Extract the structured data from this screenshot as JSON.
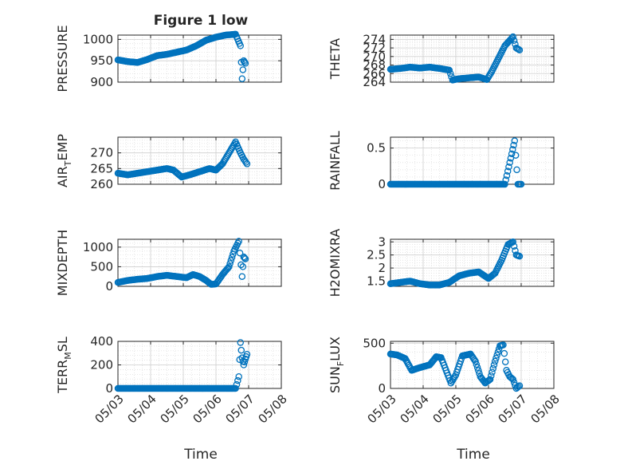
{
  "figure": {
    "title": "Figure 1 low",
    "xlabel": "Time",
    "marker_color": "#0072BD",
    "marker": "open-circle",
    "grid": "on (major + minor dotted)"
  },
  "chart_data": [
    {
      "type": "scatter",
      "ylabel": "PRESSURE",
      "ylim": [
        900,
        1010
      ],
      "yticks": [
        900,
        950,
        1000
      ],
      "xlim_days": [
        3,
        8
      ],
      "xticks": [
        "05/03",
        "05/04",
        "05/05",
        "05/06",
        "05/07",
        "05/08"
      ],
      "xticklabels_shown": false,
      "x_days": [
        3.0,
        3.3,
        3.6,
        3.9,
        4.2,
        4.5,
        4.8,
        5.1,
        5.4,
        5.7,
        6.0,
        6.3,
        6.6,
        6.75,
        6.8,
        6.85,
        6.9
      ],
      "y": [
        952,
        948,
        946,
        953,
        962,
        965,
        970,
        975,
        985,
        998,
        1005,
        1010,
        1012,
        985,
        908,
        950,
        944
      ]
    },
    {
      "type": "scatter",
      "ylabel": "THETA",
      "ylim": [
        264,
        275
      ],
      "yticks": [
        264,
        266,
        268,
        270,
        272,
        274
      ],
      "xlim_days": [
        3,
        8
      ],
      "xticks": [
        "05/03",
        "05/04",
        "05/05",
        "05/06",
        "05/07",
        "05/08"
      ],
      "xticklabels_shown": false,
      "x_days": [
        3.0,
        3.3,
        3.6,
        3.9,
        4.2,
        4.5,
        4.8,
        4.9,
        5.1,
        5.4,
        5.7,
        5.95,
        6.1,
        6.3,
        6.5,
        6.75,
        6.85,
        6.95
      ],
      "y": [
        267,
        267.2,
        267.5,
        267.3,
        267.5,
        267.2,
        266.8,
        264.5,
        264.8,
        265,
        265.2,
        264.6,
        266.5,
        269.5,
        272.5,
        274.6,
        272,
        271.5
      ]
    },
    {
      "type": "scatter",
      "ylabel": "AIR_TEMP",
      "ylim": [
        260,
        275
      ],
      "yticks": [
        260,
        265,
        270
      ],
      "xlim_days": [
        3,
        8
      ],
      "xticks": [
        "05/03",
        "05/04",
        "05/05",
        "05/06",
        "05/07",
        "05/08"
      ],
      "xticklabels_shown": false,
      "x_days": [
        3.0,
        3.3,
        3.6,
        3.9,
        4.2,
        4.5,
        4.7,
        4.95,
        5.2,
        5.5,
        5.8,
        6.0,
        6.2,
        6.4,
        6.6,
        6.75,
        6.85,
        6.95
      ],
      "y": [
        263.5,
        263,
        263.5,
        264,
        264.5,
        265,
        264.5,
        262.3,
        263,
        264,
        265,
        264.5,
        266.5,
        270,
        273.5,
        270,
        268,
        266.5
      ]
    },
    {
      "type": "scatter",
      "ylabel": "RAINFALL",
      "ylim": [
        0,
        0.65
      ],
      "yticks": [
        0,
        0.5
      ],
      "xlim_days": [
        3,
        8
      ],
      "xticks": [
        "05/03",
        "05/04",
        "05/05",
        "05/06",
        "05/07",
        "05/08"
      ],
      "xticklabels_shown": false,
      "x_days": [
        3.0,
        3.5,
        4.0,
        4.5,
        5.0,
        5.5,
        6.0,
        6.5,
        6.8,
        6.9,
        7.0
      ],
      "y": [
        0,
        0,
        0,
        0,
        0,
        0,
        0,
        0,
        0.6,
        0,
        0
      ]
    },
    {
      "type": "scatter",
      "ylabel": "MIXDEPTH",
      "ylim": [
        0,
        1200
      ],
      "yticks": [
        0,
        500,
        1000
      ],
      "xlim_days": [
        3,
        8
      ],
      "xticks": [
        "05/03",
        "05/04",
        "05/05",
        "05/06",
        "05/07",
        "05/08"
      ],
      "xticklabels_shown": false,
      "x_days": [
        3.0,
        3.3,
        3.6,
        3.9,
        4.2,
        4.5,
        4.8,
        5.1,
        5.3,
        5.5,
        5.7,
        5.85,
        6.0,
        6.2,
        6.4,
        6.55,
        6.7,
        6.8,
        6.85,
        6.9
      ],
      "y": [
        100,
        150,
        180,
        200,
        250,
        280,
        250,
        220,
        300,
        250,
        150,
        50,
        60,
        300,
        500,
        900,
        1150,
        250,
        750,
        700
      ]
    },
    {
      "type": "scatter",
      "ylabel": "H2OMIXRA",
      "ylim": [
        1.3,
        3.1
      ],
      "yticks": [
        1.5,
        2,
        2.5,
        3
      ],
      "xlim_days": [
        3,
        8
      ],
      "xticks": [
        "05/03",
        "05/04",
        "05/05",
        "05/06",
        "05/07",
        "05/08"
      ],
      "xticklabels_shown": false,
      "x_days": [
        3.0,
        3.3,
        3.6,
        3.9,
        4.2,
        4.5,
        4.8,
        5.1,
        5.4,
        5.7,
        6.0,
        6.2,
        6.4,
        6.6,
        6.75,
        6.85,
        6.95
      ],
      "y": [
        1.4,
        1.45,
        1.5,
        1.4,
        1.35,
        1.35,
        1.45,
        1.7,
        1.8,
        1.85,
        1.6,
        1.8,
        2.3,
        2.9,
        3.0,
        2.5,
        2.45
      ]
    },
    {
      "type": "scatter",
      "ylabel": "TERR_MSL",
      "ylim": [
        0,
        400
      ],
      "yticks": [
        0,
        200,
        400
      ],
      "xlim_days": [
        3,
        8
      ],
      "xticks": [
        "05/03",
        "05/04",
        "05/05",
        "05/06",
        "05/07",
        "05/08"
      ],
      "xticklabels_shown": true,
      "x_days": [
        3.0,
        3.5,
        4.0,
        4.5,
        5.0,
        5.5,
        6.0,
        6.5,
        6.6,
        6.7,
        6.75,
        6.8,
        6.85,
        6.9,
        6.95
      ],
      "y": [
        0,
        0,
        0,
        0,
        0,
        0,
        0,
        0,
        0,
        100,
        390,
        260,
        200,
        250,
        290
      ]
    },
    {
      "type": "scatter",
      "ylabel": "SUN_FLUX",
      "ylim": [
        0,
        520
      ],
      "yticks": [
        0,
        500
      ],
      "xlim_days": [
        3,
        8
      ],
      "xticks": [
        "05/03",
        "05/04",
        "05/05",
        "05/06",
        "05/07",
        "05/08"
      ],
      "xticklabels_shown": true,
      "x_days": [
        3.0,
        3.2,
        3.45,
        3.65,
        3.9,
        4.2,
        4.4,
        4.55,
        4.7,
        4.85,
        5.0,
        5.2,
        5.45,
        5.6,
        5.75,
        5.9,
        6.05,
        6.2,
        6.35,
        6.45,
        6.55,
        6.65,
        6.75,
        6.85,
        6.95
      ],
      "y": [
        380,
        370,
        330,
        200,
        230,
        260,
        350,
        340,
        200,
        60,
        150,
        360,
        380,
        300,
        130,
        60,
        100,
        300,
        470,
        480,
        200,
        130,
        100,
        0,
        30
      ]
    }
  ]
}
